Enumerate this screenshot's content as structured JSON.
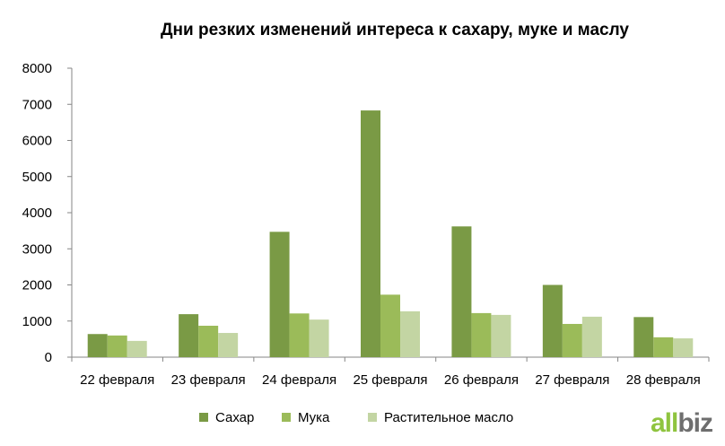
{
  "chart_data": {
    "type": "bar",
    "title": "Дни резких изменений интереса к сахару,  муке и маслу",
    "categories": [
      "22 февраля",
      "23 февраля",
      "24 февраля",
      "25 февраля",
      "26 февраля",
      "27 февраля",
      "28 февраля"
    ],
    "series": [
      {
        "name": "Сахар",
        "color": "#7a9a45",
        "values": [
          640,
          1190,
          3470,
          6830,
          3620,
          2000,
          1110
        ]
      },
      {
        "name": "Мука",
        "color": "#9bbb59",
        "values": [
          600,
          870,
          1210,
          1730,
          1220,
          920,
          550
        ]
      },
      {
        "name": "Растительное масло",
        "color": "#c3d5a3",
        "values": [
          450,
          670,
          1040,
          1270,
          1170,
          1120,
          520
        ]
      }
    ],
    "ylim": [
      0,
      8000
    ],
    "yticks": [
      "0",
      "1000",
      "2000",
      "3000",
      "4000",
      "5000",
      "6000",
      "7000",
      "8000"
    ],
    "xlabel": "",
    "ylabel": "",
    "grid": false,
    "legend_position": "bottom"
  },
  "logo": {
    "part1": "all",
    "part2": "biz"
  }
}
